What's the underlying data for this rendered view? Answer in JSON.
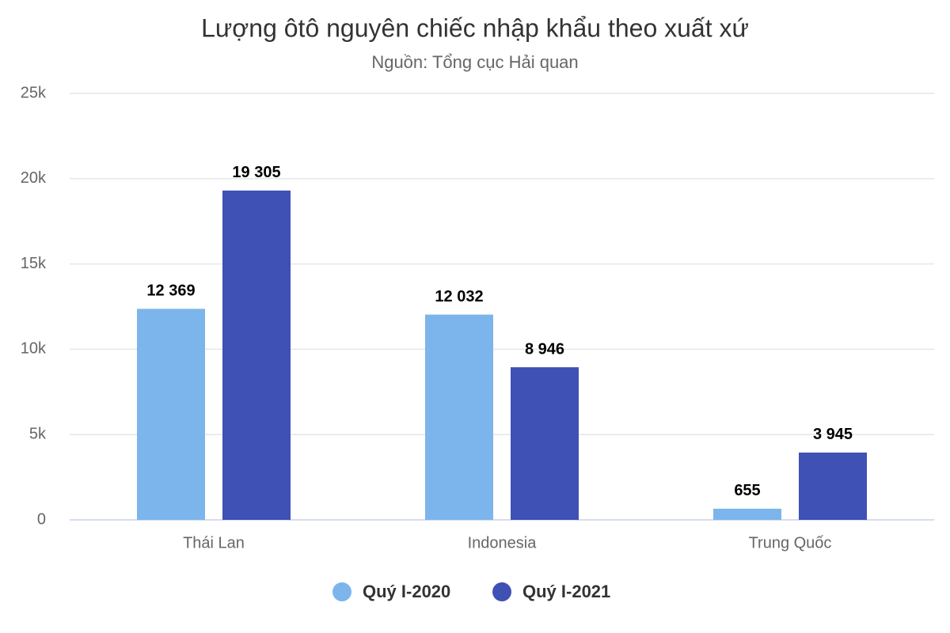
{
  "chart_data": {
    "type": "bar",
    "title": "Lượng ôtô nguyên chiếc nhập khẩu theo xuất xứ",
    "subtitle": "Nguồn: Tổng cục Hải quan",
    "categories": [
      "Thái Lan",
      "Indonesia",
      "Trung Quốc"
    ],
    "series": [
      {
        "name": "Quý I-2020",
        "color": "#7cb5ec",
        "values": [
          12369,
          12032,
          655
        ],
        "value_labels": [
          "12 369",
          "12 032",
          "655"
        ]
      },
      {
        "name": "Quý I-2021",
        "color": "#3f51b5",
        "values": [
          19305,
          8946,
          3945
        ],
        "value_labels": [
          "19 305",
          "8 946",
          "3 945"
        ]
      }
    ],
    "ylim": [
      0,
      25000
    ],
    "yticks": [
      0,
      {
        "value": 5000,
        "label": "5k"
      },
      {
        "value": 10000,
        "label": "10k"
      },
      {
        "value": 15000,
        "label": "15k"
      },
      {
        "value": 20000,
        "label": "20k"
      },
      {
        "value": 25000,
        "label": "25k"
      }
    ],
    "grid": true
  }
}
